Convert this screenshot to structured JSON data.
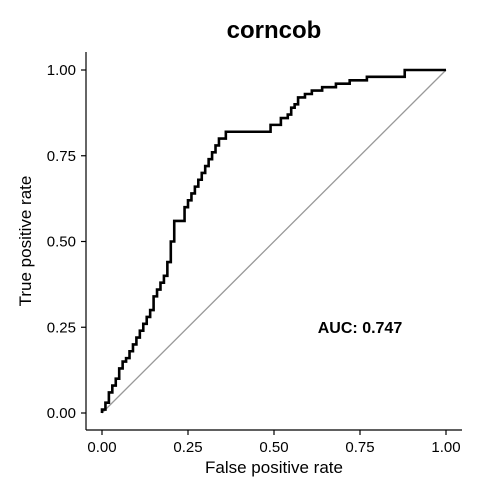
{
  "chart_data": {
    "type": "line",
    "title": "corncob",
    "xlabel": "False positive rate",
    "ylabel": "True positive rate",
    "xlim": [
      0,
      1
    ],
    "ylim": [
      0,
      1
    ],
    "xticks": [
      "0.00",
      "0.25",
      "0.50",
      "0.75",
      "1.00"
    ],
    "yticks": [
      "0.00",
      "0.25",
      "0.50",
      "0.75",
      "1.00"
    ],
    "grid": false,
    "annotation": "AUC: 0.747",
    "series": [
      {
        "color": "#000000",
        "x": [
          0,
          0,
          0.01,
          0.01,
          0.02,
          0.02,
          0.03,
          0.03,
          0.04,
          0.04,
          0.05,
          0.05,
          0.06,
          0.06,
          0.07,
          0.07,
          0.08,
          0.08,
          0.09,
          0.09,
          0.1,
          0.1,
          0.11,
          0.11,
          0.12,
          0.12,
          0.13,
          0.13,
          0.14,
          0.14,
          0.15,
          0.15,
          0.16,
          0.16,
          0.17,
          0.17,
          0.18,
          0.18,
          0.19,
          0.19,
          0.2,
          0.2,
          0.21,
          0.21,
          0.24,
          0.24,
          0.25,
          0.25,
          0.26,
          0.26,
          0.27,
          0.27,
          0.28,
          0.28,
          0.29,
          0.29,
          0.3,
          0.3,
          0.31,
          0.31,
          0.32,
          0.32,
          0.33,
          0.33,
          0.34,
          0.34,
          0.36,
          0.36,
          0.49,
          0.49,
          0.52,
          0.52,
          0.54,
          0.54,
          0.55,
          0.55,
          0.56,
          0.56,
          0.57,
          0.57,
          0.59,
          0.59,
          0.61,
          0.61,
          0.64,
          0.64,
          0.68,
          0.68,
          0.72,
          0.72,
          0.77,
          0.77,
          0.88,
          0.88,
          1.0
        ],
        "y": [
          0,
          0.01,
          0.01,
          0.03,
          0.03,
          0.06,
          0.06,
          0.08,
          0.08,
          0.1,
          0.1,
          0.13,
          0.13,
          0.15,
          0.15,
          0.16,
          0.16,
          0.18,
          0.18,
          0.2,
          0.2,
          0.22,
          0.22,
          0.24,
          0.24,
          0.26,
          0.26,
          0.28,
          0.28,
          0.3,
          0.3,
          0.34,
          0.34,
          0.36,
          0.36,
          0.38,
          0.38,
          0.4,
          0.4,
          0.44,
          0.44,
          0.5,
          0.5,
          0.56,
          0.56,
          0.6,
          0.6,
          0.62,
          0.62,
          0.64,
          0.64,
          0.66,
          0.66,
          0.68,
          0.68,
          0.7,
          0.7,
          0.72,
          0.72,
          0.74,
          0.74,
          0.76,
          0.76,
          0.78,
          0.78,
          0.8,
          0.8,
          0.82,
          0.82,
          0.84,
          0.84,
          0.86,
          0.86,
          0.87,
          0.87,
          0.89,
          0.89,
          0.9,
          0.9,
          0.92,
          0.92,
          0.93,
          0.93,
          0.94,
          0.94,
          0.95,
          0.95,
          0.96,
          0.96,
          0.97,
          0.97,
          0.98,
          0.98,
          1.0,
          1.0
        ]
      }
    ],
    "reference_line": {
      "x": [
        0,
        1
      ],
      "y": [
        0,
        1
      ],
      "color": "#999999"
    }
  }
}
